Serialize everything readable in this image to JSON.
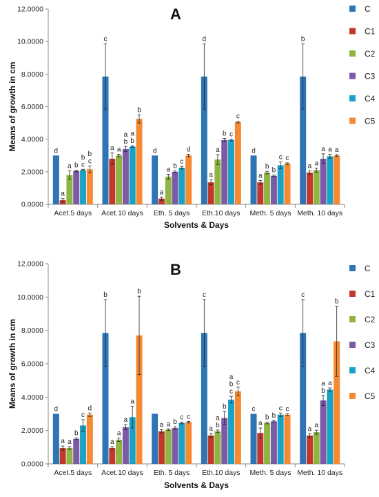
{
  "chart_data": [
    {
      "type": "bar",
      "title": "A",
      "xlabel": "Solvents & Days",
      "ylabel": "Means of growth in cm",
      "ylim": [
        0,
        12
      ],
      "yticks": [
        "0.0000",
        "2.0000",
        "4.0000",
        "6.0000",
        "8.0000",
        "10.0000",
        "12.0000"
      ],
      "categories": [
        "Acet.5 days",
        "Acet.10 days",
        "Eth. 5 days",
        "Eth.10 days",
        "Meth. 5 days",
        "Meth. 10 days"
      ],
      "legend": "right",
      "series": [
        {
          "name": "C",
          "color": "#2e75b6",
          "values": [
            3.0,
            7.85,
            3.0,
            7.85,
            3.0,
            7.85
          ],
          "errors": [
            0,
            2.0,
            0,
            2.0,
            0,
            2.0
          ],
          "letters": [
            "d",
            "c",
            "d",
            "d",
            "d",
            "b"
          ]
        },
        {
          "name": "C1",
          "color": "#c0392b",
          "values": [
            0.25,
            2.8,
            0.35,
            1.35,
            1.35,
            1.95
          ],
          "errors": [
            0.1,
            0.35,
            0.1,
            0.15,
            0.12,
            0.1
          ],
          "letters": [
            "a",
            "a",
            "a",
            "a",
            "a",
            "a"
          ]
        },
        {
          "name": "C2",
          "color": "#8fb443",
          "values": [
            1.8,
            3.0,
            1.7,
            2.75,
            1.95,
            2.1
          ],
          "errors": [
            0.25,
            0.08,
            0.15,
            0.3,
            0.08,
            0.12
          ],
          "letters": [
            "a",
            "a",
            "a",
            "a",
            "b",
            "a"
          ]
        },
        {
          "name": "C3",
          "color": "#7b5aa6",
          "values": [
            2.05,
            3.4,
            2.0,
            3.95,
            1.75,
            2.8
          ],
          "errors": [
            0.05,
            0.15,
            0.05,
            0.1,
            0.05,
            0.3
          ],
          "letters": [
            "b",
            "a\nb",
            "b",
            "b",
            "b",
            "a"
          ]
        },
        {
          "name": "C4",
          "color": "#1ba1c6",
          "values": [
            2.1,
            3.55,
            2.25,
            3.95,
            2.4,
            2.95
          ],
          "errors": [
            0.05,
            0.05,
            0.08,
            0.05,
            0.2,
            0.12
          ],
          "letters": [
            "b\nc",
            "a\nb",
            "c",
            "c",
            "c",
            "a"
          ]
        },
        {
          "name": "C5",
          "color": "#f58a33",
          "values": [
            2.15,
            5.25,
            3.0,
            5.05,
            2.5,
            3.0
          ],
          "errors": [
            0.2,
            0.25,
            0.08,
            0.05,
            0.05,
            0.05
          ],
          "letters": [
            "b\nc",
            "b",
            "d",
            "c",
            "c",
            "a"
          ]
        }
      ]
    },
    {
      "type": "bar",
      "title": "B",
      "xlabel": "Solvents & Days",
      "ylabel": "Means of growth in cm",
      "ylim": [
        0,
        12
      ],
      "yticks": [
        "0.0000",
        "2.0000",
        "4.0000",
        "6.0000",
        "8.0000",
        "10.0000",
        "12.0000"
      ],
      "categories": [
        "Acet.5 days",
        "Acet.10 days",
        "Eth. 5 days",
        "Eth.10 days",
        "Meth. 5 days",
        "Meth. 10 days"
      ],
      "legend": "right",
      "series": [
        {
          "name": "C",
          "color": "#2e75b6",
          "values": [
            3.0,
            7.85,
            3.0,
            7.85,
            3.0,
            7.85
          ],
          "errors": [
            0,
            2.0,
            0,
            2.0,
            0,
            2.0
          ],
          "letters": [
            "d",
            "b",
            "",
            "c",
            "c",
            "c"
          ]
        },
        {
          "name": "C1",
          "color": "#c0392b",
          "values": [
            0.95,
            0.95,
            1.95,
            1.7,
            1.85,
            1.7
          ],
          "errors": [
            0.12,
            0.08,
            0.1,
            0.12,
            0.3,
            0.1
          ],
          "letters": [
            "a",
            "a",
            "a",
            "a",
            "a",
            "a"
          ]
        },
        {
          "name": "C2",
          "color": "#8fb443",
          "values": [
            0.95,
            1.45,
            2.05,
            1.95,
            2.45,
            1.9
          ],
          "errors": [
            0.08,
            0.1,
            0.05,
            0.08,
            0.05,
            0.12
          ],
          "letters": [
            "a",
            "a",
            "a",
            "a\nb",
            "b",
            "a"
          ]
        },
        {
          "name": "C3",
          "color": "#7b5aa6",
          "values": [
            1.5,
            2.2,
            2.15,
            2.75,
            2.55,
            3.8
          ],
          "errors": [
            0.05,
            0.15,
            0.08,
            0.4,
            0.05,
            0.3
          ],
          "letters": [
            "b",
            "a",
            "b",
            "b",
            "b",
            "a\nb"
          ]
        },
        {
          "name": "C4",
          "color": "#1ba1c6",
          "values": [
            2.3,
            2.8,
            2.45,
            3.85,
            2.95,
            4.45
          ],
          "errors": [
            0.35,
            0.65,
            0.05,
            0.2,
            0.1,
            0.1
          ],
          "letters": [
            "c",
            "a",
            "c",
            "a\nb\nc",
            "c",
            "a"
          ]
        },
        {
          "name": "C5",
          "color": "#f58a33",
          "values": [
            2.95,
            7.7,
            2.5,
            4.35,
            2.95,
            7.35
          ],
          "errors": [
            0.1,
            2.35,
            0.05,
            0.25,
            0.05,
            2.1
          ],
          "letters": [
            "d",
            "b",
            "c",
            "c",
            "c",
            "b"
          ]
        }
      ]
    }
  ]
}
